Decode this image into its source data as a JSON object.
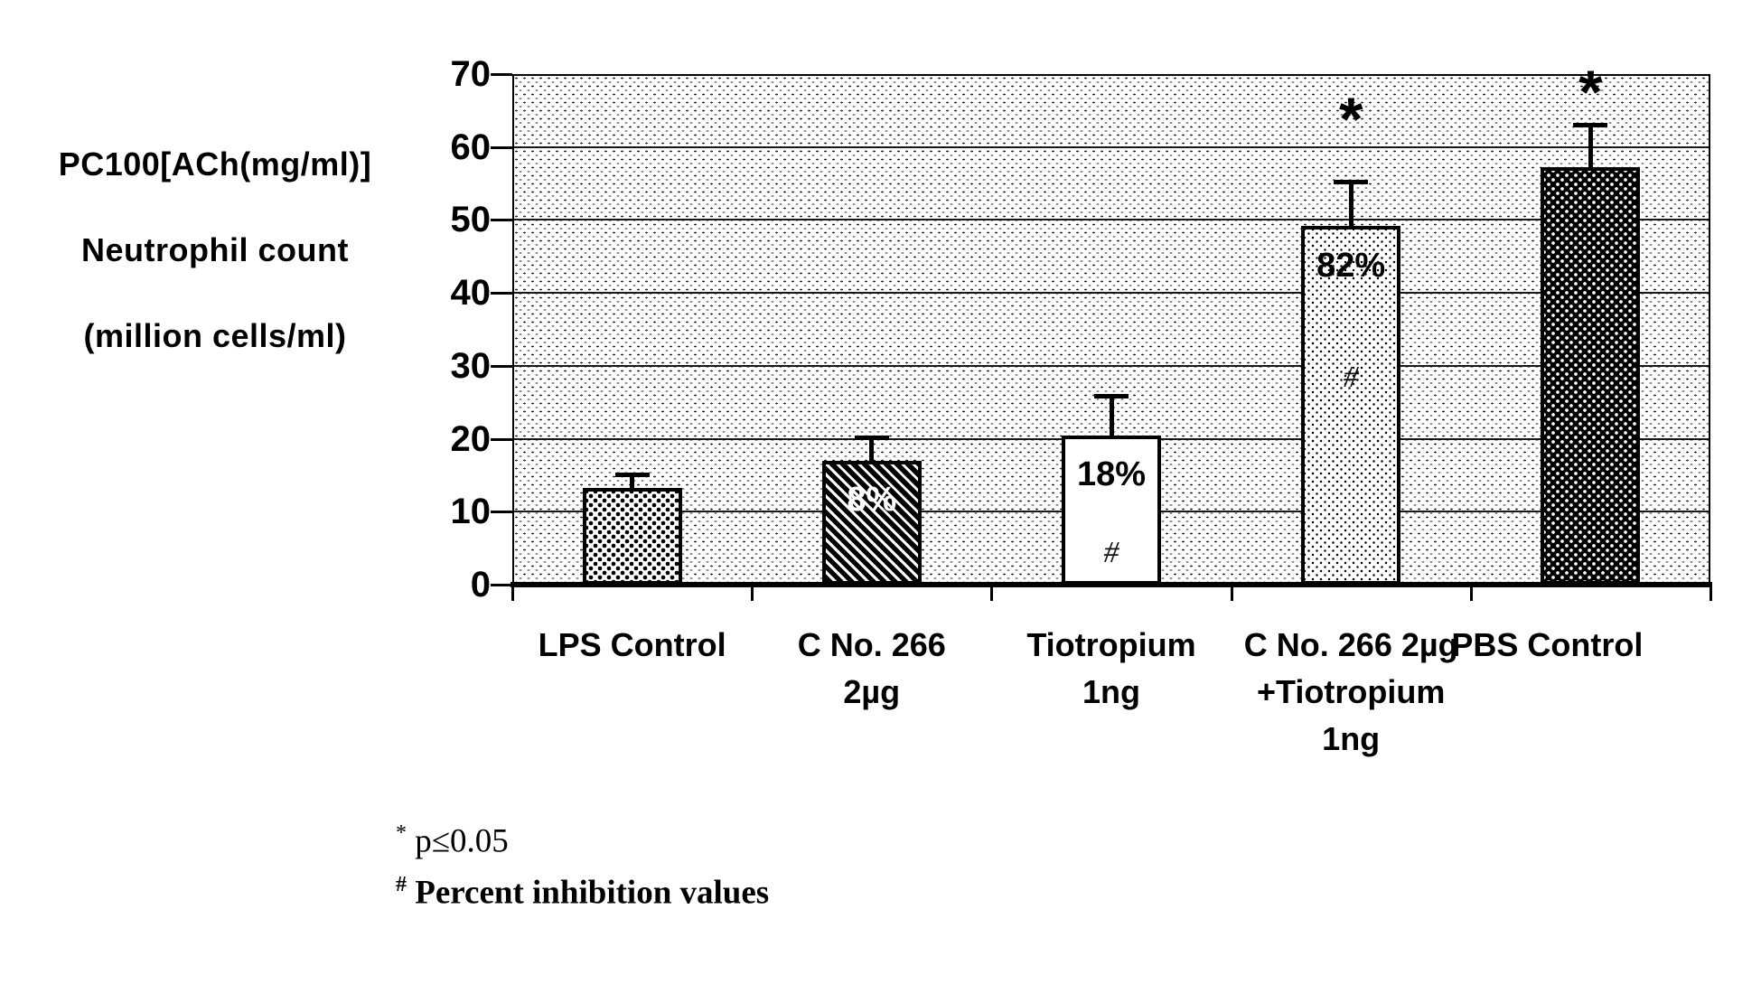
{
  "footnotes": {
    "star_symbol": "*",
    "star_text": "p≤0.05",
    "hash_symbol": "#",
    "hash_text": "Percent inhibition values"
  },
  "chart_data": {
    "type": "bar",
    "title": "",
    "ylabel_lines": [
      "PC100[ACh(mg/ml)]",
      "Neutrophil count",
      "(million cells/ml)"
    ],
    "xlabel": "",
    "ylim": [
      0,
      70
    ],
    "yticks": [
      0,
      10,
      20,
      30,
      40,
      50,
      60,
      70
    ],
    "grid": "horizontal",
    "legend": "none",
    "categories": [
      [
        "LPS Control"
      ],
      [
        "C No. 266",
        "2µg"
      ],
      [
        "Tiotropium",
        "1ng"
      ],
      [
        "C No. 266 2µg",
        "+Tiotropium",
        "1ng"
      ],
      [
        "PBS Control"
      ]
    ],
    "series": [
      {
        "name": "Neutrophil count (million cells/ml)",
        "values": [
          13.2,
          17.0,
          20.5,
          49.2,
          57.2
        ]
      }
    ],
    "errors_upper": [
      2.2,
      3.5,
      5.6,
      6.3,
      6.1
    ],
    "bar_patterns": [
      "checker",
      "hatch",
      "plain",
      "sparse",
      "darkdots"
    ],
    "annotations": [
      {
        "bar": 1,
        "text": "8%",
        "y": 11.7,
        "style": "pct-white"
      },
      {
        "bar": 2,
        "text": "18%",
        "y": 15.1,
        "style": "pct-black"
      },
      {
        "bar": 2,
        "text": "#",
        "y": 4.3,
        "style": "hash"
      },
      {
        "bar": 3,
        "text": "82%",
        "y": 43.7,
        "style": "pct-black"
      },
      {
        "bar": 3,
        "text": "#",
        "y": 28.4,
        "style": "hash"
      },
      {
        "bar": 3,
        "text": "*",
        "y": 62.3,
        "style": "star"
      },
      {
        "bar": 4,
        "text": "*",
        "y": 66.0,
        "style": "star"
      }
    ]
  }
}
